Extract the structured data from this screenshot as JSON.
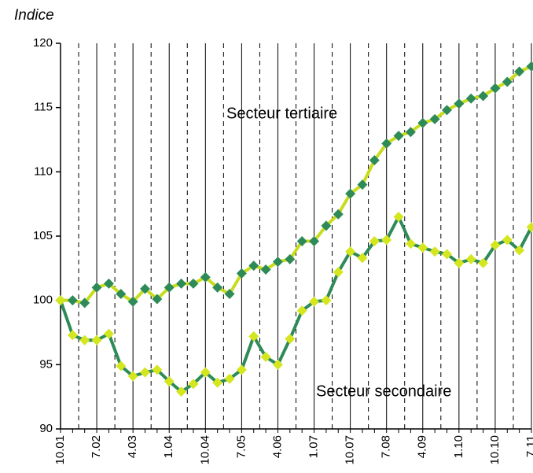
{
  "chart_data": {
    "type": "line",
    "y_axis_label": "Indice",
    "categories": [
      "10.01",
      null,
      null,
      "7.02",
      null,
      null,
      "4.03",
      null,
      null,
      "1.04",
      null,
      null,
      "10.04",
      null,
      null,
      "7.05",
      null,
      null,
      "4.06",
      null,
      null,
      "1.07",
      null,
      null,
      "10.07",
      null,
      null,
      "7.08",
      null,
      null,
      "4.09",
      null,
      null,
      "1.10",
      null,
      null,
      "10.10",
      null,
      null,
      "7.11"
    ],
    "series": [
      {
        "name": "Secteur tertiaire",
        "color": "#c8dc1e",
        "marker_color": "#2e8b57",
        "values": [
          100,
          100,
          99.8,
          101,
          101.3,
          100.5,
          99.9,
          100.9,
          100.1,
          101,
          101.3,
          101.3,
          101.8,
          101,
          100.5,
          102.1,
          102.7,
          102.4,
          103,
          103.2,
          104.6,
          104.6,
          105.8,
          106.7,
          108.3,
          109,
          110.9,
          112.2,
          112.8,
          113.1,
          113.8,
          114.1,
          114.8,
          115.3,
          115.7,
          115.9,
          116.5,
          117,
          117.8,
          118.2
        ]
      },
      {
        "name": "Secteur secondaire",
        "color": "#2e8b57",
        "marker_color": "#d4e61e",
        "values": [
          100,
          97.3,
          96.9,
          96.9,
          97.4,
          94.9,
          94.1,
          94.4,
          94.6,
          93.7,
          92.9,
          93.5,
          94.4,
          93.6,
          93.9,
          94.6,
          97.2,
          95.6,
          95,
          97,
          99.2,
          99.9,
          100,
          102.2,
          103.8,
          103.3,
          104.6,
          104.7,
          106.5,
          104.4,
          104.1,
          103.8,
          103.6,
          102.9,
          103.2,
          102.9,
          104.3,
          104.7,
          103.9,
          105.7
        ]
      }
    ],
    "ylim": [
      90,
      120
    ],
    "yticks": [
      90,
      95,
      100,
      105,
      110,
      115,
      120
    ]
  }
}
